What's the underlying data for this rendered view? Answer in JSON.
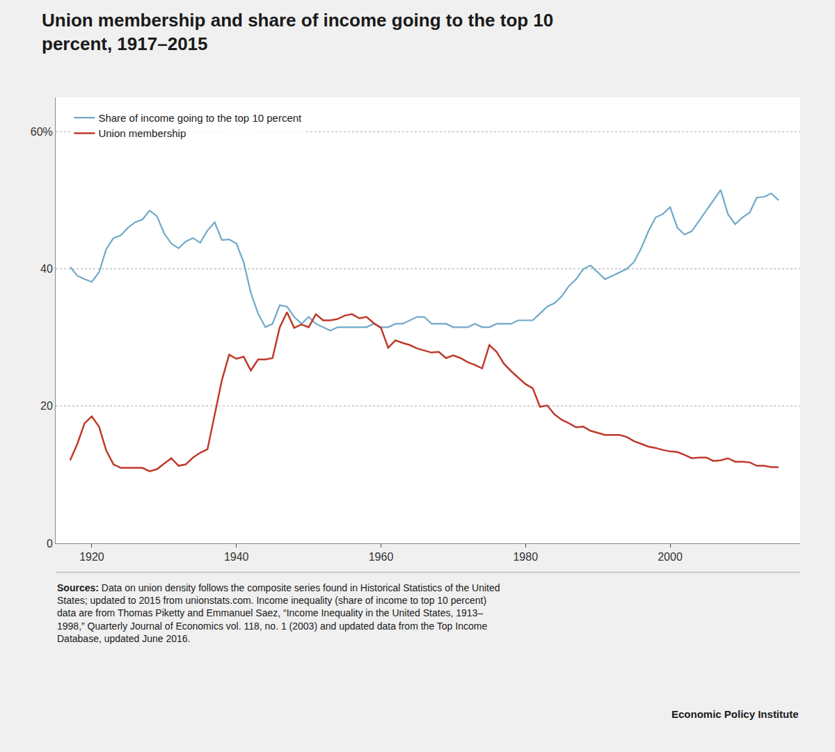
{
  "chart_data": {
    "type": "line",
    "title": "Union membership and share of income going to the top 10\npercent, 1917–2015",
    "annotations": [
      "Sources: Data on union density follows the composite series found in Historical Statistics of the United\nStates; updated to 2015 from unionstats.com. Income inequality (share of income to top 10 percent)\ndata are from Thomas Piketty and Emmanuel Saez, “Income Inequality in the United States, 1913–\n1998,” Quarterly Journal of Economics vol. 118, no. 1 (2003) and updated data from the Top Income\nDatabase, updated June 2016.",
      "Economic Policy Institute"
    ],
    "x": [
      1917,
      1918,
      1919,
      1920,
      1921,
      1922,
      1923,
      1924,
      1925,
      1926,
      1927,
      1928,
      1929,
      1930,
      1931,
      1932,
      1933,
      1934,
      1935,
      1936,
      1937,
      1938,
      1939,
      1940,
      1941,
      1942,
      1943,
      1944,
      1945,
      1946,
      1947,
      1948,
      1949,
      1950,
      1951,
      1952,
      1953,
      1954,
      1955,
      1956,
      1957,
      1958,
      1959,
      1960,
      1961,
      1962,
      1963,
      1964,
      1965,
      1966,
      1967,
      1968,
      1969,
      1970,
      1971,
      1972,
      1973,
      1974,
      1975,
      1976,
      1977,
      1978,
      1979,
      1980,
      1981,
      1982,
      1983,
      1984,
      1985,
      1986,
      1987,
      1988,
      1989,
      1990,
      1991,
      1992,
      1993,
      1994,
      1995,
      1996,
      1997,
      1998,
      1999,
      2000,
      2001,
      2002,
      2003,
      2004,
      2005,
      2006,
      2007,
      2008,
      2009,
      2010,
      2011,
      2012,
      2013,
      2014,
      2015
    ],
    "series": [
      {
        "name": "Share of income going to the top 10 percent",
        "color": "#6fa8c8",
        "values": [
          40.3,
          39.0,
          38.5,
          38.1,
          39.5,
          42.9,
          44.5,
          44.9,
          46.0,
          46.8,
          47.2,
          48.5,
          47.7,
          45.2,
          43.7,
          43.0,
          44.0,
          44.5,
          43.8,
          45.6,
          46.8,
          44.2,
          44.3,
          43.7,
          41.0,
          36.5,
          33.5,
          31.5,
          32.0,
          34.7,
          34.5,
          33.0,
          32.0,
          33.0,
          32.0,
          31.5,
          31.0,
          31.5,
          31.5,
          31.5,
          31.5,
          31.5,
          32.0,
          31.5,
          31.5,
          32.0,
          32.0,
          32.5,
          33.0,
          33.0,
          32.0,
          32.0,
          32.0,
          31.5,
          31.5,
          31.5,
          32.0,
          31.5,
          31.5,
          32.0,
          32.0,
          32.0,
          32.5,
          32.5,
          32.5,
          33.5,
          34.5,
          35.0,
          36.0,
          37.5,
          38.5,
          40.0,
          40.5,
          39.5,
          38.5,
          39.0,
          39.5,
          40.0,
          41.0,
          43.0,
          45.5,
          47.5,
          48.0,
          49.0,
          46.0,
          45.0,
          45.5,
          47.0,
          48.5,
          50.0,
          51.5,
          48.0,
          46.5,
          47.5,
          48.2,
          50.4,
          50.5,
          51.0,
          50.0
        ]
      },
      {
        "name": "Union membership",
        "color": "#c0392b",
        "values": [
          12.1,
          14.5,
          17.5,
          18.5,
          17.0,
          13.5,
          11.5,
          11.0,
          11.0,
          11.0,
          11.0,
          10.5,
          10.8,
          11.6,
          12.4,
          11.3,
          11.5,
          12.5,
          13.2,
          13.7,
          18.6,
          23.8,
          27.5,
          26.9,
          27.2,
          25.2,
          26.8,
          26.8,
          27.0,
          31.5,
          33.7,
          31.4,
          31.9,
          31.5,
          33.4,
          32.5,
          32.5,
          32.7,
          33.2,
          33.4,
          32.8,
          33.0,
          32.1,
          31.4,
          28.5,
          29.6,
          29.2,
          28.9,
          28.4,
          28.1,
          27.8,
          27.9,
          27.0,
          27.4,
          27.0,
          26.4,
          26.0,
          25.5,
          28.9,
          27.9,
          26.2,
          25.1,
          24.1,
          23.2,
          22.6,
          19.9,
          20.1,
          18.8,
          18.0,
          17.5,
          16.9,
          17.0,
          16.4,
          16.1,
          15.8,
          15.8,
          15.8,
          15.5,
          14.9,
          14.5,
          14.1,
          13.9,
          13.6,
          13.4,
          13.3,
          12.9,
          12.4,
          12.5,
          12.5,
          12.0,
          12.1,
          12.4,
          11.9,
          11.9,
          11.8,
          11.3,
          11.3,
          11.1,
          11.1
        ]
      }
    ],
    "xlim": [
      1915,
      2018
    ],
    "xticks": [
      1920,
      1940,
      1960,
      1980,
      2000
    ],
    "ylim": [
      0,
      65
    ],
    "yticks": [
      0,
      20,
      40,
      {
        "value": 60,
        "label": "60%"
      }
    ],
    "grid": true,
    "legend": "upper left"
  }
}
